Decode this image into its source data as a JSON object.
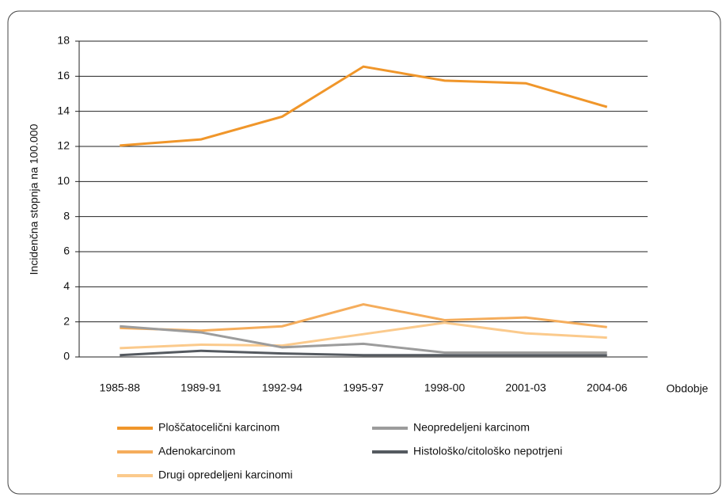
{
  "chart_data": {
    "type": "line",
    "x_label": "Obdobje",
    "y_label": "Incidenčna stopnja na 100.000",
    "categories": [
      "1985-88",
      "1989-91",
      "1992-94",
      "1995-97",
      "1998-00",
      "2001-03",
      "2004-06"
    ],
    "series": [
      {
        "name": "Ploščatocelični karcinom",
        "color": "#f0962a",
        "values": [
          12.05,
          12.4,
          13.7,
          16.55,
          15.75,
          15.6,
          14.25
        ]
      },
      {
        "name": "Adenokarcinom",
        "color": "#f5ad5c",
        "values": [
          1.65,
          1.5,
          1.75,
          3.0,
          2.1,
          2.25,
          1.7
        ]
      },
      {
        "name": "Drugi opredeljeni karcinomi",
        "color": "#fbca8c",
        "values": [
          0.5,
          0.7,
          0.65,
          1.3,
          1.95,
          1.35,
          1.1
        ]
      },
      {
        "name": "Neopredeljeni karcinom",
        "color": "#9c9c9c",
        "values": [
          1.75,
          1.4,
          0.55,
          0.75,
          0.25,
          0.25,
          0.25
        ]
      },
      {
        "name": "Histološko/citološko nepotrjeni",
        "color": "#555a60",
        "values": [
          0.1,
          0.35,
          0.2,
          0.1,
          0.1,
          0.1,
          0.1
        ]
      }
    ],
    "ylim": [
      0,
      18
    ],
    "yticks": [
      0,
      2,
      4,
      6,
      8,
      10,
      12,
      14,
      16,
      18
    ],
    "grid": true
  }
}
